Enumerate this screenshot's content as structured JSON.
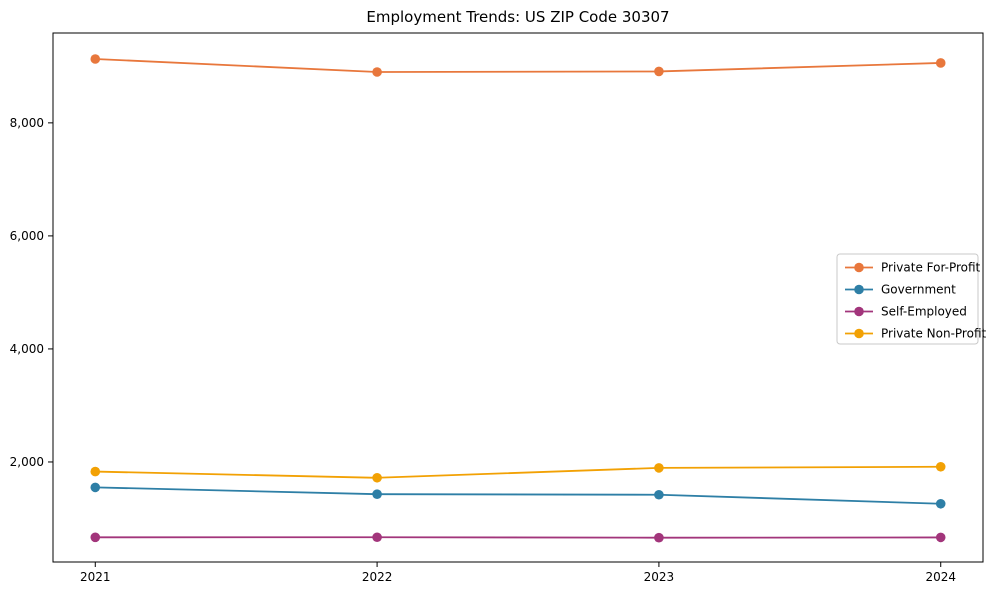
{
  "chart_data": {
    "type": "line",
    "title": "Employment Trends: US ZIP Code 30307",
    "xlabel": "",
    "ylabel": "",
    "x": [
      2021,
      2022,
      2023,
      2024
    ],
    "x_tick_labels": [
      "2021",
      "2022",
      "2023",
      "2024"
    ],
    "series": [
      {
        "name": "Private For-Profit",
        "color": "#e8773c",
        "values": [
          9130,
          8900,
          8910,
          9060
        ]
      },
      {
        "name": "Government",
        "color": "#2e7fa6",
        "values": [
          1550,
          1430,
          1420,
          1260
        ]
      },
      {
        "name": "Self-Employed",
        "color": "#a2357b",
        "values": [
          667,
          668,
          660,
          665
        ]
      },
      {
        "name": "Private Non-Profit",
        "color": "#f2a104",
        "values": [
          1830,
          1720,
          1895,
          1915
        ]
      }
    ],
    "xlim": [
      2020.85,
      2024.15
    ],
    "ylim": [
      230,
      9590
    ],
    "yticks": [
      2000,
      4000,
      6000,
      8000
    ],
    "ytick_labels": [
      "2,000",
      "4,000",
      "6,000",
      "8,000"
    ],
    "grid": false,
    "legend_position": "center right",
    "marker": "circle",
    "axis_color": "#000000",
    "tick_label_color": "#000000",
    "legend_border_color": "#c9c9c9",
    "background": "#ffffff"
  }
}
